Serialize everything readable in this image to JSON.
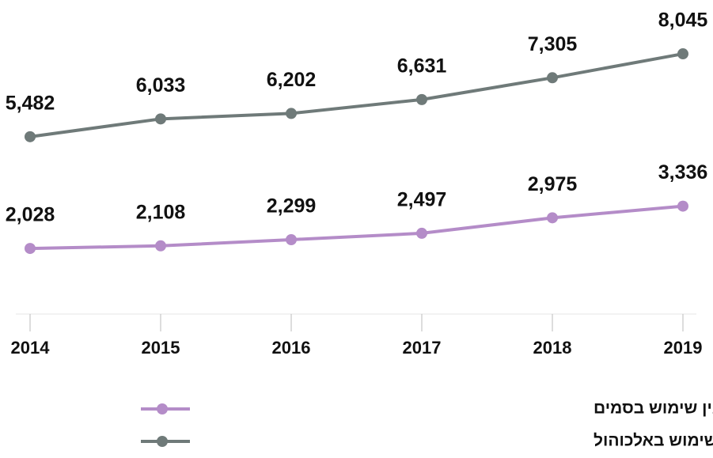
{
  "chart_data": {
    "type": "line",
    "categories": [
      "2014",
      "2015",
      "2016",
      "2017",
      "2018",
      "2019"
    ],
    "series": [
      {
        "name": "פניות למחלקות לרפואה דחופה בגין שימוש בסמים",
        "color": "#b48cc8",
        "values": [
          2028,
          2108,
          2299,
          2497,
          2975,
          3336
        ],
        "value_labels": [
          "2,028",
          "2,108",
          "2,299",
          "2,497",
          "2,975",
          "3,336"
        ]
      },
      {
        "name": "פניות למחלקות לרפואה דחופה בגין שימוש באלכוהול",
        "color": "#6f7a79",
        "values": [
          5482,
          6033,
          6202,
          6631,
          7305,
          8045
        ],
        "value_labels": [
          "5,482",
          "6,033",
          "6,202",
          "6,631",
          "7,305",
          "8,045"
        ]
      }
    ],
    "ylim": [
      0,
      9000
    ]
  }
}
